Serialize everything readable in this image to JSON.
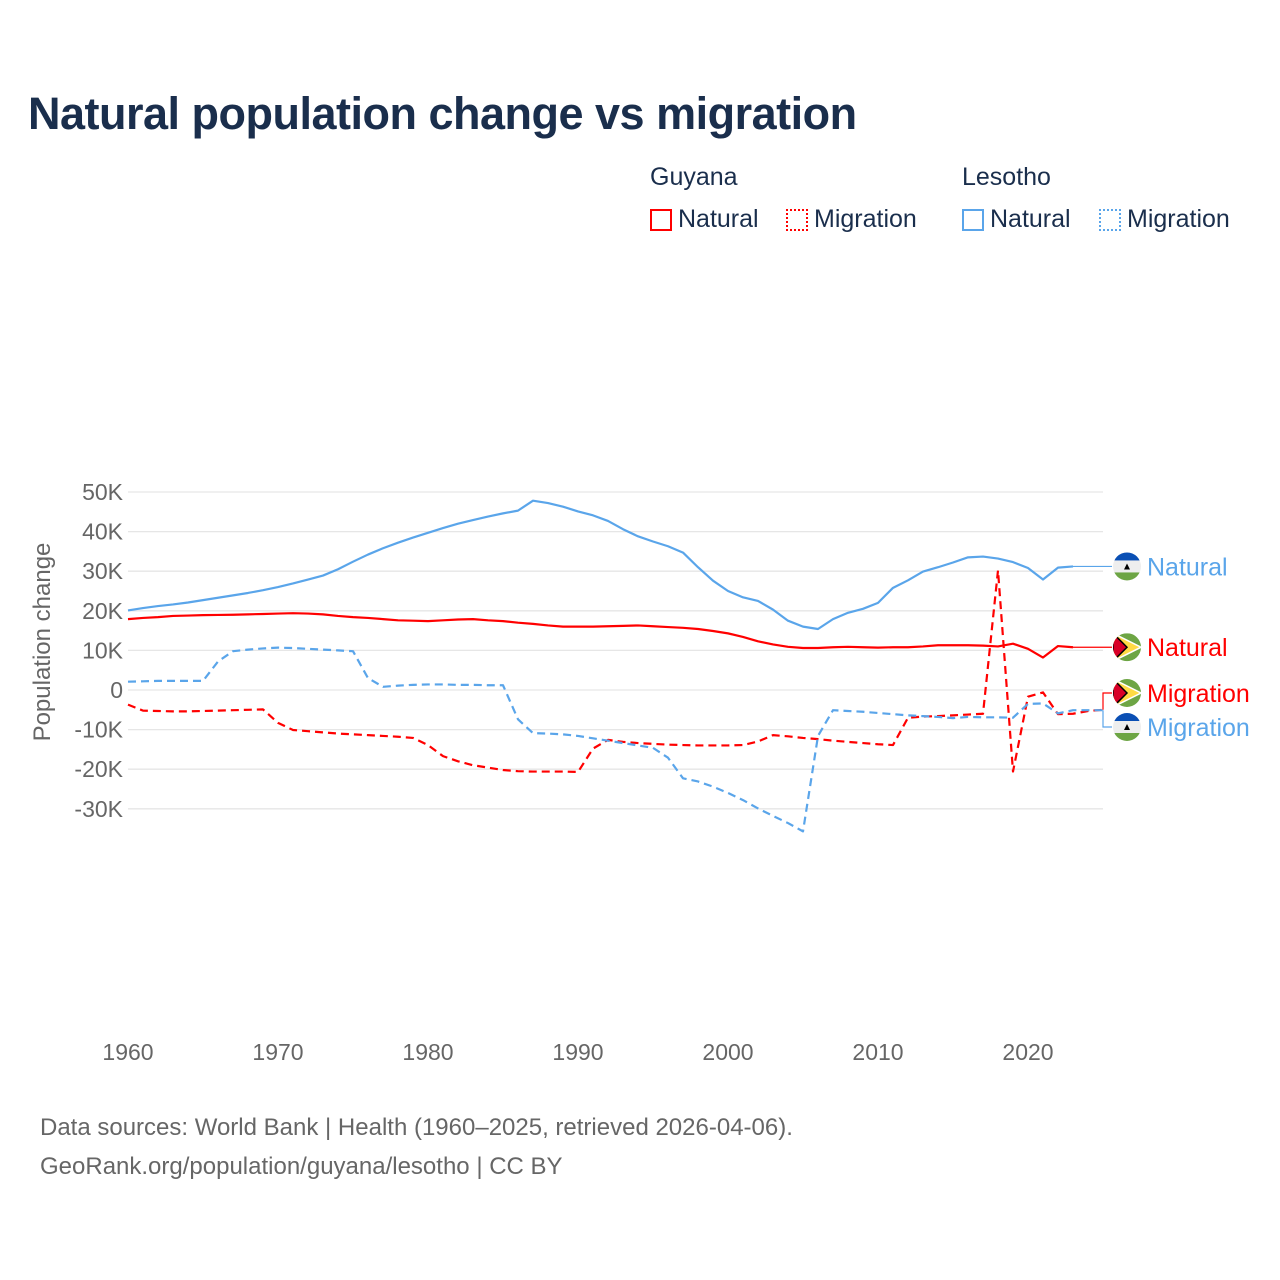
{
  "title": "Natural population change vs migration",
  "legend": {
    "groups": [
      {
        "name": "Guyana",
        "items": [
          "Natural",
          "Migration"
        ]
      },
      {
        "name": "Lesotho",
        "items": [
          "Natural",
          "Migration"
        ]
      }
    ]
  },
  "colors": {
    "guyana": "#ff0000",
    "lesotho": "#5aa5ea",
    "text": "#1a2e4c",
    "grid": "#e6e6e6",
    "axis": "#666666"
  },
  "footer": {
    "line1": "Data sources: World Bank | Health (1960–2025, retrieved 2026-04-06).",
    "line2": "GeoRank.org/population/guyana/lesotho | CC BY"
  },
  "chart_data": {
    "type": "line",
    "title": "Natural population change vs migration",
    "xlabel": "",
    "ylabel": "Population change",
    "xlim": [
      1960,
      2025
    ],
    "ylim": [
      -40000,
      50000
    ],
    "x_ticks": [
      1960,
      1970,
      1980,
      1990,
      2000,
      2010,
      2020
    ],
    "y_ticks": [
      50000,
      40000,
      30000,
      20000,
      10000,
      0,
      -10000,
      -20000,
      -30000
    ],
    "y_tick_labels": [
      "50K",
      "40K",
      "30K",
      "20K",
      "10K",
      "0",
      "-10K",
      "-20K",
      "-30K"
    ],
    "grid": true,
    "legend_position": "top-right",
    "series": [
      {
        "name": "Lesotho Natural",
        "country": "Lesotho",
        "kind": "Natural",
        "color": "#5aa5ea",
        "dashed": false,
        "start": 1960,
        "values": [
          20100,
          20700,
          21200,
          21600,
          22100,
          22700,
          23300,
          23900,
          24500,
          25200,
          26000,
          26900,
          27900,
          28900,
          30500,
          32400,
          34200,
          35800,
          37200,
          38500,
          39700,
          40900,
          42000,
          42900,
          43800,
          44600,
          45300,
          47800,
          47200,
          46300,
          45100,
          44100,
          42700,
          40600,
          38800,
          37500,
          36300,
          34700,
          31000,
          27600,
          25000,
          23400,
          22500,
          20300,
          17500,
          16000,
          15400,
          17900,
          19500,
          20500,
          22000,
          25800,
          27700,
          29900,
          31000,
          32200,
          33500,
          33700,
          33200,
          32300,
          30800,
          27900,
          30900,
          31200
        ]
      },
      {
        "name": "Guyana Natural",
        "country": "Guyana",
        "kind": "Natural",
        "color": "#ff0000",
        "dashed": false,
        "start": 1960,
        "values": [
          17900,
          18200,
          18400,
          18700,
          18800,
          18900,
          18950,
          19000,
          19100,
          19200,
          19300,
          19400,
          19300,
          19100,
          18700,
          18400,
          18200,
          17900,
          17600,
          17500,
          17400,
          17600,
          17800,
          17900,
          17600,
          17400,
          17000,
          16700,
          16300,
          16000,
          16000,
          16000,
          16100,
          16200,
          16300,
          16100,
          15900,
          15700,
          15400,
          14900,
          14300,
          13400,
          12300,
          11500,
          10900,
          10600,
          10600,
          10800,
          10900,
          10800,
          10700,
          10800,
          10800,
          11000,
          11300,
          11300,
          11300,
          11200,
          11000,
          11700,
          10400,
          8200,
          11100,
          10800
        ]
      },
      {
        "name": "Guyana Migration",
        "country": "Guyana",
        "kind": "Migration",
        "color": "#ff0000",
        "dashed": true,
        "start": 1960,
        "values": [
          -3700,
          -5200,
          -5300,
          -5400,
          -5400,
          -5300,
          -5200,
          -5100,
          -5000,
          -4900,
          -8300,
          -10100,
          -10400,
          -10700,
          -11000,
          -11200,
          -11400,
          -11600,
          -11800,
          -12100,
          -13900,
          -16700,
          -18000,
          -19000,
          -19600,
          -20200,
          -20500,
          -20600,
          -20600,
          -20600,
          -20700,
          -14800,
          -12600,
          -13100,
          -13400,
          -13600,
          -13800,
          -13900,
          -14000,
          -14000,
          -14000,
          -13900,
          -13000,
          -11400,
          -11700,
          -12100,
          -12400,
          -12800,
          -13100,
          -13400,
          -13700,
          -13900,
          -7000,
          -6700,
          -6600,
          -6400,
          -6200,
          -6000,
          30200,
          -20600,
          -1700,
          -600,
          -6100,
          -6000,
          -5300,
          -5000
        ]
      },
      {
        "name": "Lesotho Migration",
        "country": "Lesotho",
        "kind": "Migration",
        "color": "#5aa5ea",
        "dashed": true,
        "start": 1960,
        "values": [
          2100,
          2200,
          2300,
          2300,
          2300,
          2300,
          7200,
          9800,
          10200,
          10500,
          10700,
          10600,
          10400,
          10200,
          10000,
          9800,
          3000,
          800,
          1100,
          1300,
          1400,
          1400,
          1300,
          1300,
          1200,
          1200,
          -7400,
          -10900,
          -11000,
          -11200,
          -11600,
          -12200,
          -12800,
          -13400,
          -14000,
          -14600,
          -17100,
          -22300,
          -23100,
          -24400,
          -26000,
          -27800,
          -29900,
          -31800,
          -33600,
          -35700,
          -11600,
          -5100,
          -5300,
          -5500,
          -5800,
          -6100,
          -6400,
          -6600,
          -6800,
          -7100,
          -6800,
          -6900,
          -6900,
          -7000,
          -3500,
          -3400,
          -5900,
          -5100,
          -5100,
          -5100
        ]
      }
    ]
  }
}
